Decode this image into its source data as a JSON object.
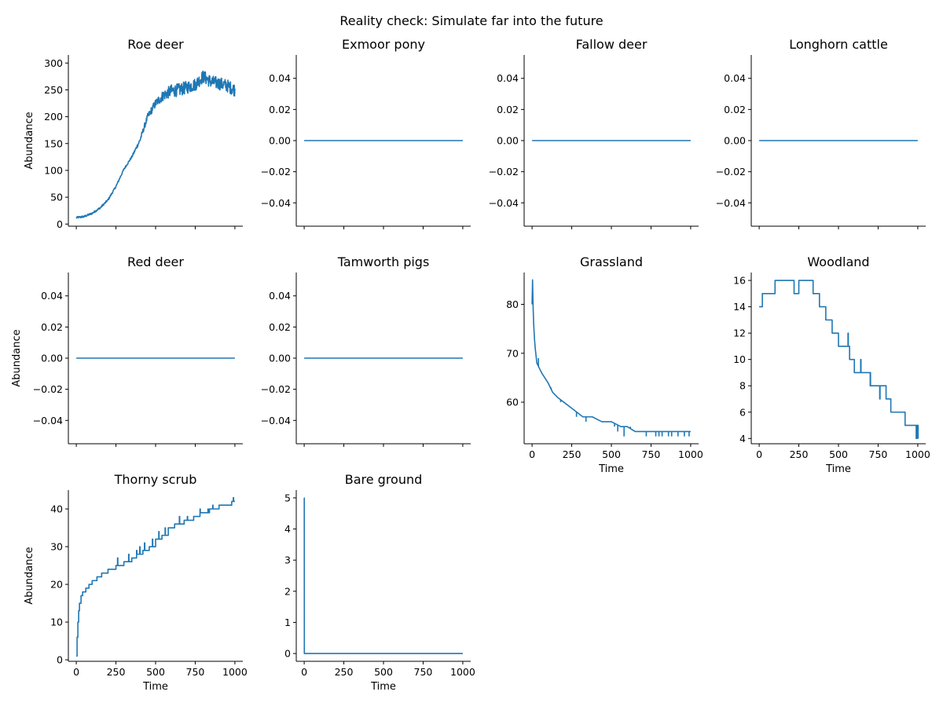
{
  "figure": {
    "title": "Reality check: Simulate far into the future",
    "line_color": "#1f77b4"
  },
  "chart_data": [
    {
      "type": "line",
      "title": "Roe deer",
      "xlabel": "",
      "ylabel": "Abundance",
      "xlim": [
        -50,
        1050
      ],
      "ylim": [
        -4,
        315
      ],
      "xticks": [
        0,
        250,
        500,
        750,
        1000
      ],
      "xtick_labels": [],
      "yticks": [
        0,
        50,
        100,
        150,
        200,
        250,
        300
      ],
      "ytick_labels": [
        "0",
        "50",
        "100",
        "150",
        "200",
        "250",
        "300"
      ],
      "series": [
        {
          "noise": 12,
          "x": [
            0,
            50,
            100,
            150,
            200,
            250,
            300,
            350,
            400,
            450,
            500,
            550,
            600,
            650,
            700,
            750,
            800,
            850,
            900,
            950,
            1000
          ],
          "y": [
            12,
            14,
            20,
            30,
            45,
            70,
            102,
            125,
            155,
            200,
            225,
            240,
            248,
            250,
            255,
            260,
            275,
            265,
            262,
            258,
            250
          ]
        }
      ]
    },
    {
      "type": "line",
      "title": "Exmoor pony",
      "xlabel": "",
      "ylabel": "",
      "xlim": [
        -50,
        1050
      ],
      "ylim": [
        -0.055,
        0.055
      ],
      "xticks": [
        0,
        250,
        500,
        750,
        1000
      ],
      "xtick_labels": [],
      "yticks": [
        -0.04,
        -0.02,
        0,
        0.02,
        0.04
      ],
      "ytick_labels": [
        "−0.04",
        "−0.02",
        "0.00",
        "0.02",
        "0.04"
      ],
      "series": [
        {
          "x": [
            0,
            1000
          ],
          "y": [
            0,
            0
          ]
        }
      ]
    },
    {
      "type": "line",
      "title": "Fallow deer",
      "xlabel": "",
      "ylabel": "",
      "xlim": [
        -50,
        1050
      ],
      "ylim": [
        -0.055,
        0.055
      ],
      "xticks": [
        0,
        250,
        500,
        750,
        1000
      ],
      "xtick_labels": [],
      "yticks": [
        -0.04,
        -0.02,
        0,
        0.02,
        0.04
      ],
      "ytick_labels": [
        "−0.04",
        "−0.02",
        "0.00",
        "0.02",
        "0.04"
      ],
      "series": [
        {
          "x": [
            0,
            1000
          ],
          "y": [
            0,
            0
          ]
        }
      ]
    },
    {
      "type": "line",
      "title": "Longhorn cattle",
      "xlabel": "",
      "ylabel": "",
      "xlim": [
        -50,
        1050
      ],
      "ylim": [
        -0.055,
        0.055
      ],
      "xticks": [
        0,
        250,
        500,
        750,
        1000
      ],
      "xtick_labels": [],
      "yticks": [
        -0.04,
        -0.02,
        0,
        0.02,
        0.04
      ],
      "ytick_labels": [
        "−0.04",
        "−0.02",
        "0.00",
        "0.02",
        "0.04"
      ],
      "series": [
        {
          "x": [
            0,
            1000
          ],
          "y": [
            0,
            0
          ]
        }
      ]
    },
    {
      "type": "line",
      "title": "Red deer",
      "xlabel": "",
      "ylabel": "Abundance",
      "xlim": [
        -50,
        1050
      ],
      "ylim": [
        -0.055,
        0.055
      ],
      "xticks": [
        0,
        250,
        500,
        750,
        1000
      ],
      "xtick_labels": [],
      "yticks": [
        -0.04,
        -0.02,
        0,
        0.02,
        0.04
      ],
      "ytick_labels": [
        "−0.04",
        "−0.02",
        "0.00",
        "0.02",
        "0.04"
      ],
      "series": [
        {
          "x": [
            0,
            1000
          ],
          "y": [
            0,
            0
          ]
        }
      ]
    },
    {
      "type": "line",
      "title": "Tamworth pigs",
      "xlabel": "",
      "ylabel": "",
      "xlim": [
        -50,
        1050
      ],
      "ylim": [
        -0.055,
        0.055
      ],
      "xticks": [
        0,
        250,
        500,
        750,
        1000
      ],
      "xtick_labels": [],
      "yticks": [
        -0.04,
        -0.02,
        0,
        0.02,
        0.04
      ],
      "ytick_labels": [
        "−0.04",
        "−0.02",
        "0.00",
        "0.02",
        "0.04"
      ],
      "series": [
        {
          "x": [
            0,
            1000
          ],
          "y": [
            0,
            0
          ]
        }
      ]
    },
    {
      "type": "line",
      "title": "Grassland",
      "xlabel": "Time",
      "ylabel": "",
      "xlim": [
        -50,
        1050
      ],
      "ylim": [
        51.5,
        86.5
      ],
      "xticks": [
        0,
        250,
        500,
        750,
        1000
      ],
      "xtick_labels": [
        "0",
        "250",
        "500",
        "750",
        "1000"
      ],
      "yticks": [
        60,
        70,
        80
      ],
      "ytick_labels": [
        "60",
        "70",
        "80"
      ],
      "series": [
        {
          "x": [
            0,
            3,
            6,
            10,
            15,
            20,
            30,
            45,
            60,
            80,
            100,
            130,
            160,
            200,
            240,
            280,
            320,
            380,
            440,
            500,
            560,
            600,
            650,
            700,
            750,
            800,
            850,
            900,
            950,
            1000
          ],
          "y": [
            80,
            85,
            80,
            76,
            73,
            71,
            68,
            67,
            66,
            65,
            64,
            62,
            61,
            60,
            59,
            58,
            57,
            57,
            56,
            56,
            55,
            55,
            54,
            54,
            54,
            54,
            54,
            54,
            54,
            54
          ],
          "spikes": [
            [
              40,
              69
            ],
            [
              120,
              63
            ],
            [
              180,
              60
            ],
            [
              280,
              57
            ],
            [
              340,
              56
            ],
            [
              380,
              57
            ],
            [
              520,
              55
            ],
            [
              540,
              54
            ],
            [
              580,
              53
            ],
            [
              620,
              55
            ],
            [
              720,
              53
            ],
            [
              780,
              53
            ],
            [
              800,
              53
            ],
            [
              820,
              53
            ],
            [
              860,
              53
            ],
            [
              880,
              53
            ],
            [
              920,
              53
            ],
            [
              960,
              53
            ],
            [
              990,
              53
            ]
          ]
        }
      ]
    },
    {
      "type": "line",
      "title": "Woodland",
      "xlabel": "Time",
      "ylabel": "",
      "xlim": [
        -50,
        1050
      ],
      "ylim": [
        3.6,
        16.6
      ],
      "xticks": [
        0,
        250,
        500,
        750,
        1000
      ],
      "xtick_labels": [
        "0",
        "250",
        "500",
        "750",
        "1000"
      ],
      "yticks": [
        4,
        6,
        8,
        10,
        12,
        14,
        16
      ],
      "ytick_labels": [
        "4",
        "6",
        "8",
        "10",
        "12",
        "14",
        "16"
      ],
      "series": [
        {
          "step": true,
          "x": [
            0,
            20,
            100,
            220,
            250,
            340,
            380,
            420,
            460,
            500,
            570,
            600,
            640,
            700,
            720,
            800,
            830,
            920,
            970,
            1000
          ],
          "y": [
            14,
            15,
            16,
            15,
            16,
            15,
            14,
            13,
            12,
            11,
            10,
            9,
            9,
            8,
            8,
            7,
            6,
            5,
            5,
            4
          ],
          "spikes": [
            [
              560,
              12
            ],
            [
              640,
              10
            ],
            [
              700,
              9
            ],
            [
              760,
              7
            ],
            [
              990,
              4
            ],
            [
              1000,
              5
            ]
          ]
        }
      ]
    },
    {
      "type": "line",
      "title": "Thorny scrub",
      "xlabel": "Time",
      "ylabel": "Abundance",
      "xlim": [
        -50,
        1050
      ],
      "ylim": [
        -0.4,
        45
      ],
      "xticks": [
        0,
        250,
        500,
        750,
        1000
      ],
      "xtick_labels": [
        "0",
        "250",
        "500",
        "750",
        "1000"
      ],
      "yticks": [
        0,
        10,
        20,
        30,
        40
      ],
      "ytick_labels": [
        "0",
        "10",
        "20",
        "30",
        "40"
      ],
      "series": [
        {
          "step": true,
          "x": [
            0,
            5,
            10,
            15,
            20,
            30,
            40,
            60,
            80,
            100,
            130,
            160,
            200,
            250,
            300,
            350,
            380,
            420,
            460,
            500,
            540,
            580,
            620,
            680,
            740,
            780,
            840,
            900,
            950,
            980,
            1000
          ],
          "y": [
            1,
            6,
            10,
            13,
            15,
            17,
            18,
            19,
            20,
            21,
            22,
            23,
            24,
            25,
            26,
            27,
            28,
            29,
            30,
            32,
            33,
            35,
            36,
            37,
            38,
            39,
            40,
            41,
            41,
            42,
            42
          ],
          "spikes": [
            [
              260,
              27
            ],
            [
              330,
              28
            ],
            [
              380,
              29
            ],
            [
              400,
              30
            ],
            [
              430,
              31
            ],
            [
              480,
              32
            ],
            [
              520,
              34
            ],
            [
              560,
              35
            ],
            [
              650,
              38
            ],
            [
              700,
              38
            ],
            [
              780,
              40
            ],
            [
              830,
              40
            ],
            [
              860,
              41
            ],
            [
              990,
              43
            ]
          ]
        }
      ]
    },
    {
      "type": "line",
      "title": "Bare ground",
      "xlabel": "Time",
      "ylabel": "",
      "xlim": [
        -50,
        1050
      ],
      "ylim": [
        -0.25,
        5.25
      ],
      "xticks": [
        0,
        250,
        500,
        750,
        1000
      ],
      "xtick_labels": [
        "0",
        "250",
        "500",
        "750",
        "1000"
      ],
      "yticks": [
        0,
        1,
        2,
        3,
        4,
        5
      ],
      "ytick_labels": [
        "0",
        "1",
        "2",
        "3",
        "4",
        "5"
      ],
      "series": [
        {
          "x": [
            0,
            0.5,
            1,
            1000
          ],
          "y": [
            5,
            5,
            0,
            0
          ]
        }
      ]
    }
  ]
}
